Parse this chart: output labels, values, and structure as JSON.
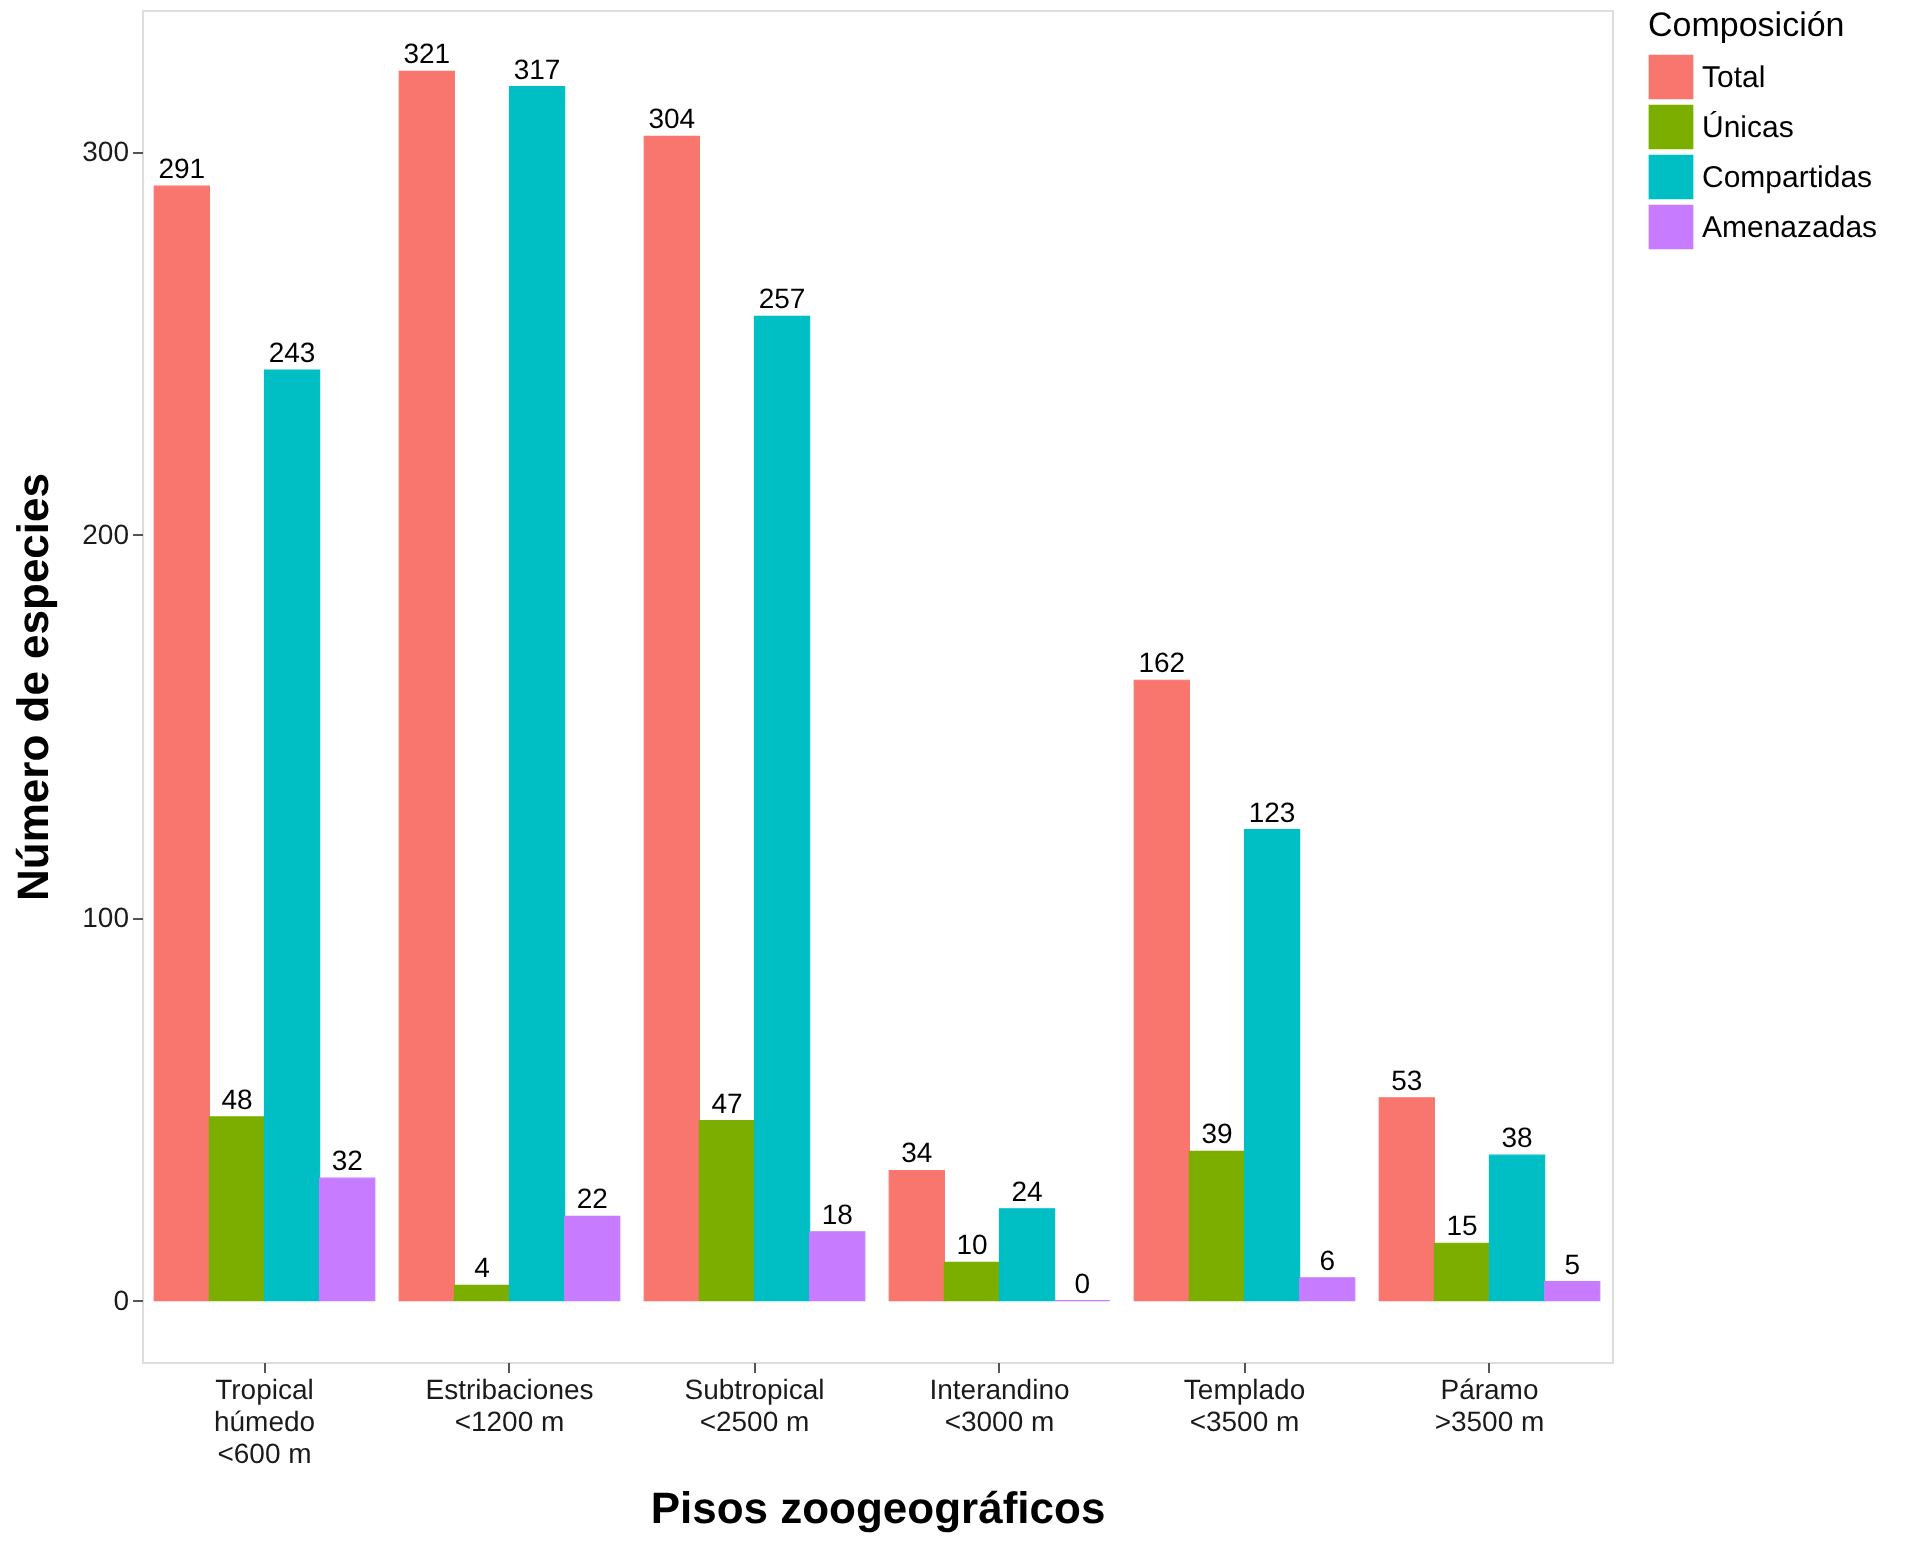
{
  "chart_data": {
    "type": "bar",
    "xlabel": "Pisos zoogeográficos",
    "ylabel": "Número de especies",
    "legend_title": "Composición",
    "legend": "right",
    "grid": false,
    "data_labels": true,
    "categories": [
      "Tropical\nhúmedo\n<600 m",
      "Estribaciones\n<1200 m",
      "Subtropical\n<2500 m",
      "Interandino\n<3000 m",
      "Templado\n<3500 m",
      "Páramo\n>3500 m"
    ],
    "ylim": [
      -16,
      337
    ],
    "yticks": [
      0,
      100,
      200,
      300
    ],
    "series": [
      {
        "name": "Total",
        "color": "#f8766d",
        "values": [
          291,
          321,
          304,
          34,
          162,
          53
        ]
      },
      {
        "name": "Únicas",
        "color": "#7cae00",
        "values": [
          48,
          4,
          47,
          10,
          39,
          15
        ]
      },
      {
        "name": "Compartidas",
        "color": "#00bfc4",
        "values": [
          243,
          317,
          257,
          24,
          123,
          38
        ]
      },
      {
        "name": "Amenazadas",
        "color": "#c77cff",
        "values": [
          32,
          22,
          18,
          0,
          6,
          5
        ]
      }
    ]
  }
}
